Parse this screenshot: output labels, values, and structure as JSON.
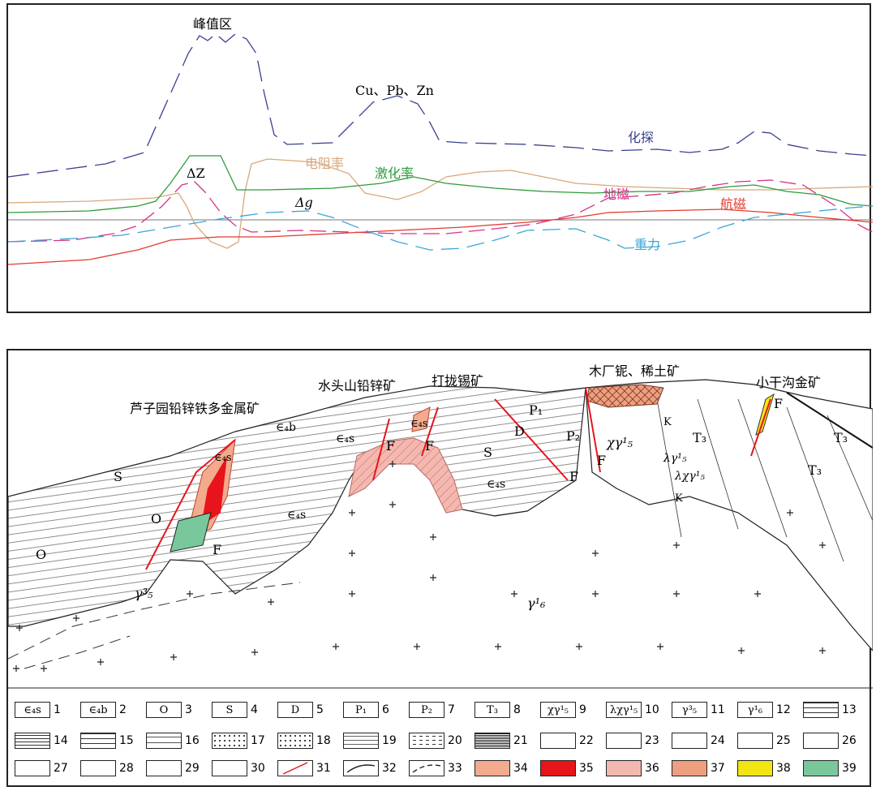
{
  "profile": {
    "peak_zone": "峰值区",
    "metals": "Cu、Pb、Zn",
    "geochem": "化探",
    "resistivity": "电阻率",
    "ip": "激化率",
    "delta_z": "ΔZ",
    "delta_g": "Δg",
    "ground_mag": "地磁",
    "aero_mag": "航磁",
    "gravity": "重力",
    "colors": {
      "geochem": "#3a3f8f",
      "resistivity": "#d9a77a",
      "ip": "#2e9b3a",
      "ground_mag": "#d6338a",
      "aero_mag": "#e23b2e",
      "gravity": "#3aa6d8",
      "baseline": "#777777"
    }
  },
  "section": {
    "deposits": {
      "luziyuan": "芦子园铅锌铁多金属矿",
      "shuitoushan": "水头山铅锌矿",
      "dalong": "打拢锡矿",
      "muchang": "木厂铌、稀土矿",
      "xiaogangou": "小干沟金矿"
    },
    "units": {
      "e4b": "∈₄b",
      "e4s": "∈₄s",
      "O": "O",
      "S": "S",
      "D": "D",
      "P1": "P₁",
      "P2": "P₂",
      "T3": "T₃",
      "F": "F",
      "K": "K",
      "chi_gamma": "χγ¹₅",
      "lambda_gamma": "λγ¹₅",
      "lambda_chi_gamma": "λχγ¹₅",
      "gamma53": "γ³₅",
      "gamma61": "γ¹₆"
    },
    "colors": {
      "c34": "#f2ab8c",
      "c35": "#e8141b",
      "c36": "#f5b8b0",
      "c37": "#ee9f7f",
      "c38": "#f3e414",
      "c39": "#79c89c",
      "fault": "#e8141b"
    }
  },
  "legend": [
    {
      "num": "1",
      "sym": "∈₄s",
      "kind": "text"
    },
    {
      "num": "2",
      "sym": "∈₄b",
      "kind": "text"
    },
    {
      "num": "3",
      "sym": "O",
      "kind": "text"
    },
    {
      "num": "4",
      "sym": "S",
      "kind": "text"
    },
    {
      "num": "5",
      "sym": "D",
      "kind": "text"
    },
    {
      "num": "6",
      "sym": "P₁",
      "kind": "text"
    },
    {
      "num": "7",
      "sym": "P₂",
      "kind": "text"
    },
    {
      "num": "8",
      "sym": "T₃",
      "kind": "text"
    },
    {
      "num": "9",
      "sym": "χγ¹₅",
      "kind": "text"
    },
    {
      "num": "10",
      "sym": "λχγ¹₅",
      "kind": "text"
    },
    {
      "num": "11",
      "sym": "γ³₅",
      "kind": "text"
    },
    {
      "num": "12",
      "sym": "γ¹₆",
      "kind": "text"
    },
    {
      "num": "13",
      "sym": "",
      "kind": "limestone"
    },
    {
      "num": "14",
      "sym": "",
      "kind": "hlines"
    },
    {
      "num": "15",
      "sym": "",
      "kind": "limestone"
    },
    {
      "num": "16",
      "sym": "",
      "kind": "dashlime"
    },
    {
      "num": "17",
      "sym": "",
      "kind": "dots"
    },
    {
      "num": "18",
      "sym": "",
      "kind": "dots"
    },
    {
      "num": "19",
      "sym": "",
      "kind": "dotlines"
    },
    {
      "num": "20",
      "sym": "",
      "kind": "dashes"
    },
    {
      "num": "21",
      "sym": "",
      "kind": "dense"
    },
    {
      "num": "22",
      "sym": "",
      "kind": "brackets"
    },
    {
      "num": "23",
      "sym": "",
      "kind": "vees"
    },
    {
      "num": "24",
      "sym": "",
      "kind": "vees"
    },
    {
      "num": "25",
      "sym": "",
      "kind": "crosses"
    },
    {
      "num": "26",
      "sym": "",
      "kind": "tees"
    },
    {
      "num": "27",
      "sym": "",
      "kind": "ticks"
    },
    {
      "num": "28",
      "sym": "",
      "kind": "plus"
    },
    {
      "num": "29",
      "sym": "",
      "kind": "plus"
    },
    {
      "num": "30",
      "sym": "",
      "kind": "xs"
    },
    {
      "num": "31",
      "sym": "",
      "kind": "redline"
    },
    {
      "num": "32",
      "sym": "",
      "kind": "line"
    },
    {
      "num": "33",
      "sym": "",
      "kind": "dashline"
    },
    {
      "num": "34",
      "sym": "",
      "kind": "c34"
    },
    {
      "num": "35",
      "sym": "",
      "kind": "c35"
    },
    {
      "num": "36",
      "sym": "",
      "kind": "c36"
    },
    {
      "num": "37",
      "sym": "",
      "kind": "c37"
    },
    {
      "num": "38",
      "sym": "",
      "kind": "c38"
    },
    {
      "num": "39",
      "sym": "",
      "kind": "c39"
    }
  ]
}
